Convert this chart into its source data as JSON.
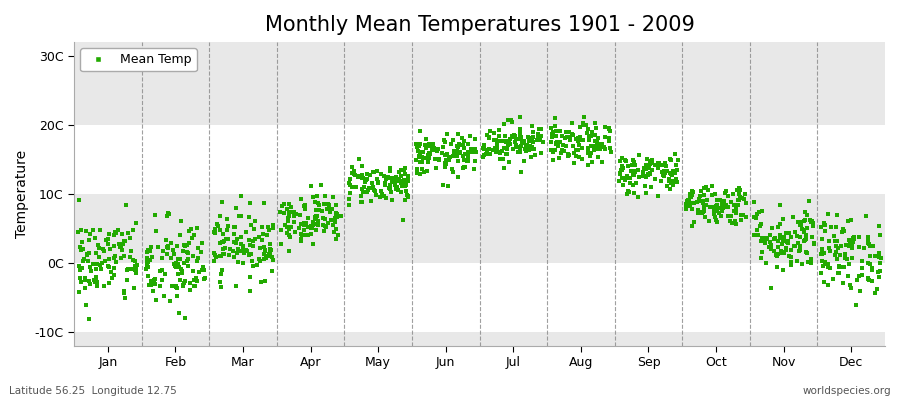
{
  "title": "Monthly Mean Temperatures 1901 - 2009",
  "ylabel": "Temperature",
  "xlabel": "",
  "yticks": [
    -10,
    0,
    10,
    20,
    30
  ],
  "ytick_labels": [
    "-10C",
    "0C",
    "10C",
    "20C",
    "30C"
  ],
  "ylim": [
    -12,
    32
  ],
  "month_names": [
    "Jan",
    "Feb",
    "Mar",
    "Apr",
    "May",
    "Jun",
    "Jul",
    "Aug",
    "Sep",
    "Oct",
    "Nov",
    "Dec"
  ],
  "marker_color": "#22AA00",
  "marker_style": "s",
  "marker_size": 2.5,
  "legend_label": "Mean Temp",
  "footnote_left": "Latitude 56.25  Longitude 12.75",
  "footnote_right": "worldspecies.org",
  "title_fontsize": 15,
  "axis_fontsize": 10,
  "tick_fontsize": 9,
  "background_color": "#EFEFEF",
  "band_color_light": "#E8E8E8",
  "band_color_dark": "#FFFFFF",
  "figure_color": "#FFFFFF",
  "monthly_means": [
    0.3,
    -0.5,
    2.8,
    6.5,
    11.5,
    15.5,
    17.5,
    17.2,
    13.0,
    8.5,
    3.5,
    1.2
  ],
  "monthly_stds": [
    3.2,
    3.5,
    2.5,
    1.8,
    1.5,
    1.5,
    1.5,
    1.5,
    1.5,
    1.5,
    2.5,
    2.8
  ],
  "n_years": 109,
  "seed": 42
}
